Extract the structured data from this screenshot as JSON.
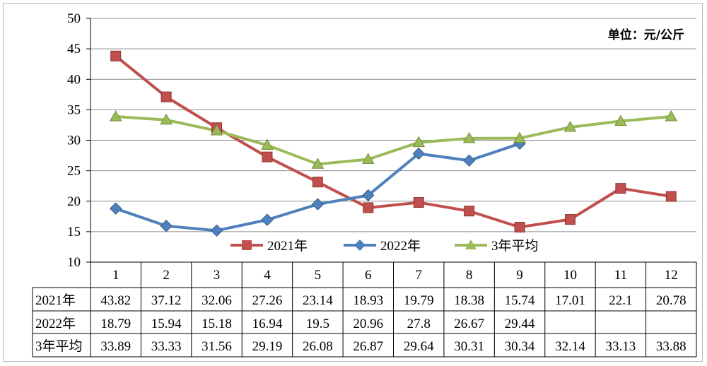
{
  "unit_label": "单位：元/公斤",
  "chart_data": {
    "type": "line",
    "title": "",
    "xlabel": "",
    "ylabel": "",
    "categories": [
      "1",
      "2",
      "3",
      "4",
      "5",
      "6",
      "7",
      "8",
      "9",
      "10",
      "11",
      "12"
    ],
    "ylim": [
      10,
      50
    ],
    "yticks": [
      "10",
      "15",
      "20",
      "25",
      "30",
      "35",
      "40",
      "45",
      "50"
    ],
    "grid": "horizontal",
    "legend_position": "bottom-center",
    "series": [
      {
        "name": "2021年",
        "color": "#c0504d",
        "marker": "square",
        "values": [
          43.82,
          37.12,
          32.06,
          27.26,
          23.14,
          18.93,
          19.79,
          18.38,
          15.74,
          17.01,
          22.1,
          20.78
        ],
        "labels": [
          "43.82",
          "37.12",
          "32.06",
          "27.26",
          "23.14",
          "18.93",
          "19.79",
          "18.38",
          "15.74",
          "17.01",
          "22.1",
          "20.78"
        ]
      },
      {
        "name": "2022年",
        "color": "#4f81bd",
        "marker": "diamond",
        "values": [
          18.79,
          15.94,
          15.18,
          16.94,
          19.5,
          20.96,
          27.8,
          26.67,
          29.44,
          null,
          null,
          null
        ],
        "labels": [
          "18.79",
          "15.94",
          "15.18",
          "16.94",
          "19.5",
          "20.96",
          "27.8",
          "26.67",
          "29.44",
          "",
          "",
          ""
        ]
      },
      {
        "name": "3年平均",
        "color": "#9bbb59",
        "marker": "triangle",
        "values": [
          33.89,
          33.33,
          31.56,
          29.19,
          26.08,
          26.87,
          29.64,
          30.31,
          30.34,
          32.14,
          33.13,
          33.88
        ],
        "labels": [
          "33.89",
          "33.33",
          "31.56",
          "29.19",
          "26.08",
          "26.87",
          "29.64",
          "30.31",
          "30.34",
          "32.14",
          "33.13",
          "33.88"
        ]
      }
    ]
  }
}
